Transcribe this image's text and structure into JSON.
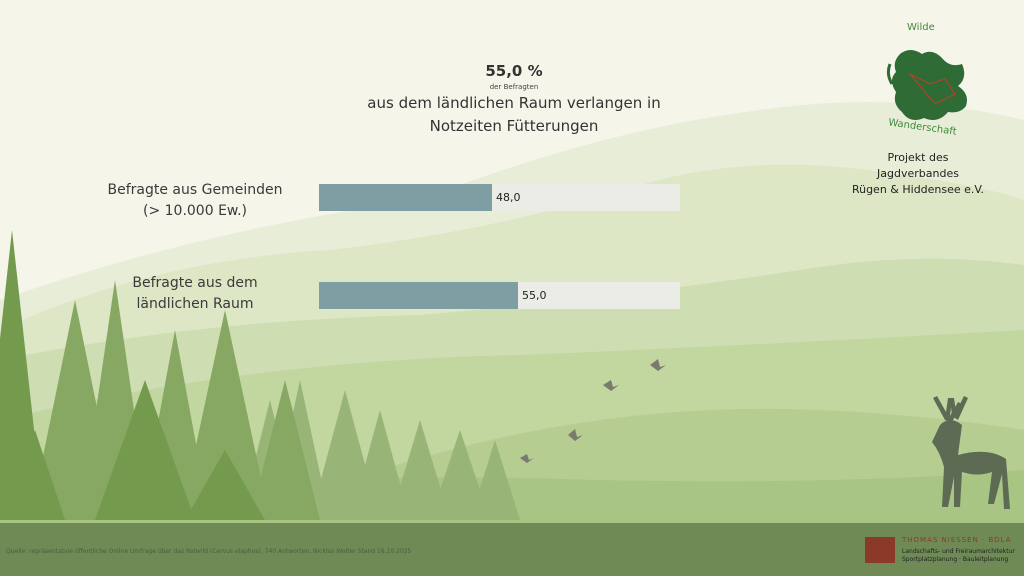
{
  "headline": {
    "value": "55,0 %",
    "subtitle": "der Befragten",
    "text_line1": "aus dem ländlichen Raum verlangen in",
    "text_line2": "Notzeiten Fütterungen"
  },
  "chart_data": {
    "type": "bar",
    "orientation": "horizontal",
    "categories": [
      "Befragte aus Gemeinden (> 10.000 Ew.)",
      "Befragte aus dem ländlichen Raum"
    ],
    "category_lines": [
      [
        "Befragte aus Gemeinden",
        "(> 10.000 Ew.)"
      ],
      [
        "Befragte aus dem",
        "ländlichen Raum"
      ]
    ],
    "values": [
      48.0,
      55.0
    ],
    "value_labels": [
      "48,0",
      "55,0"
    ],
    "xlim": [
      0,
      100
    ],
    "grid": false,
    "bar_color": "#7f9ea3",
    "track_color": "#ecece6"
  },
  "logo": {
    "top_text": "Wilde",
    "bottom_text": "Wanderschaft",
    "color": "#3f8a3a"
  },
  "project": {
    "line1": "Projekt des",
    "line2": "Jagdverbandes",
    "line3": "Rügen & Hiddensee e.V."
  },
  "footer": {
    "source": "Quelle: repräsentatvie öffentliche Online Umfrage über das Rotwild (Cervus elaphus), 740 Antworten, Nicklas Walter Stand 16.10.2025",
    "firm_name": "THOMAS NIESSEN · BDLA",
    "firm_line1": "Landschafts- und Freiraumarchitektur",
    "firm_line2": "Sportplatzplanung · Bauleitplanung",
    "firm_color": "#8b3a2a"
  }
}
